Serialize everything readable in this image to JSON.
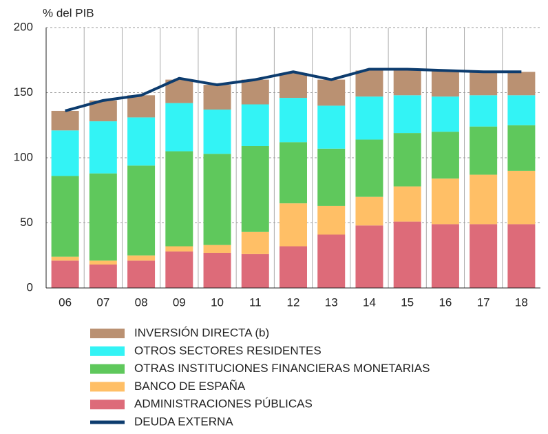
{
  "chart_data": {
    "type": "bar",
    "stacked": true,
    "y_label": "% del PIB",
    "categories": [
      "06",
      "07",
      "08",
      "09",
      "10",
      "11",
      "12",
      "13",
      "14",
      "15",
      "16",
      "17",
      "18"
    ],
    "series": [
      {
        "name": "ADMINISTRACIONES PÚBLICAS",
        "color": "#dd6b79",
        "values": [
          21,
          18,
          21,
          28,
          27,
          26,
          32,
          41,
          48,
          51,
          49,
          49,
          49
        ]
      },
      {
        "name": "BANCO DE ESPAÑA",
        "color": "#ffbf66",
        "values": [
          3,
          3,
          4,
          4,
          6,
          17,
          33,
          22,
          22,
          27,
          35,
          38,
          41
        ]
      },
      {
        "name": "OTRAS INSTITUCIONES FINANCIERAS MONETARIAS",
        "color": "#5fc85c",
        "values": [
          62,
          67,
          69,
          73,
          70,
          66,
          47,
          44,
          44,
          41,
          36,
          37,
          35
        ]
      },
      {
        "name": "OTROS SECTORES RESIDENTES",
        "color": "#33f3f5",
        "values": [
          35,
          40,
          37,
          37,
          34,
          32,
          34,
          33,
          33,
          29,
          27,
          24,
          23
        ]
      },
      {
        "name": "INVERSIÓN DIRECTA (b)",
        "color": "#ba9172",
        "values": [
          15,
          16,
          17,
          18,
          19,
          19,
          19,
          20,
          20,
          20,
          20,
          18,
          18
        ]
      },
      {
        "name": "DEUDA EXTERNA",
        "color": "#0d3c6e",
        "type": "line",
        "values": [
          136,
          144,
          148,
          161,
          156,
          160,
          166,
          160,
          168,
          168,
          167,
          166,
          166
        ]
      }
    ],
    "ylim": [
      0,
      200
    ],
    "yticks": [
      0,
      50,
      100,
      150,
      200
    ],
    "grid": true
  }
}
